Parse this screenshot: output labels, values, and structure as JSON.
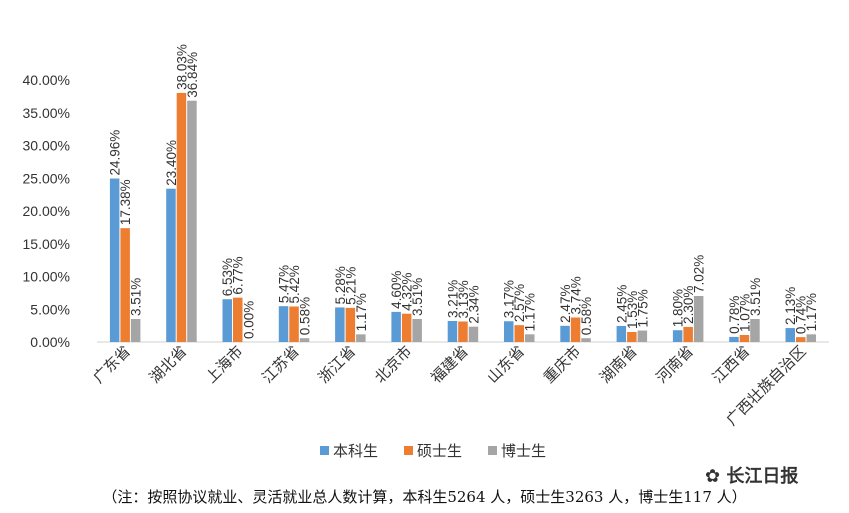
{
  "chart_data": {
    "type": "bar",
    "categories": [
      "广东省",
      "湖北省",
      "上海市",
      "江苏省",
      "浙江省",
      "北京市",
      "福建省",
      "山东省",
      "重庆市",
      "湖南省",
      "河南省",
      "江西省",
      "广西壮族自治区"
    ],
    "series": [
      {
        "name": "本科生",
        "color": "#5b9bd5",
        "values": [
          24.96,
          23.4,
          6.53,
          5.47,
          5.28,
          4.6,
          3.21,
          3.17,
          2.47,
          2.45,
          1.8,
          0.78,
          2.13
        ]
      },
      {
        "name": "硕士生",
        "color": "#ed7d31",
        "values": [
          17.38,
          38.03,
          6.77,
          5.42,
          5.21,
          4.32,
          3.13,
          2.57,
          3.74,
          1.53,
          2.3,
          1.07,
          0.74
        ]
      },
      {
        "name": "博士生",
        "color": "#a5a5a5",
        "values": [
          3.51,
          36.84,
          0.0,
          0.58,
          1.17,
          3.51,
          2.34,
          1.17,
          0.58,
          1.75,
          7.02,
          3.51,
          1.17
        ]
      }
    ],
    "ylim": [
      0,
      40
    ],
    "yticks": [
      "0.00%",
      "5.00%",
      "10.00%",
      "15.00%",
      "20.00%",
      "25.00%",
      "30.00%",
      "35.00%",
      "40.00%"
    ],
    "grid": false,
    "legend": "bottom"
  },
  "footer": "（注：按照协议就业、灵活就业总人数计算，本科生5264 人，硕士生3263 人，博士生117 人）",
  "watermark": "长江日报"
}
